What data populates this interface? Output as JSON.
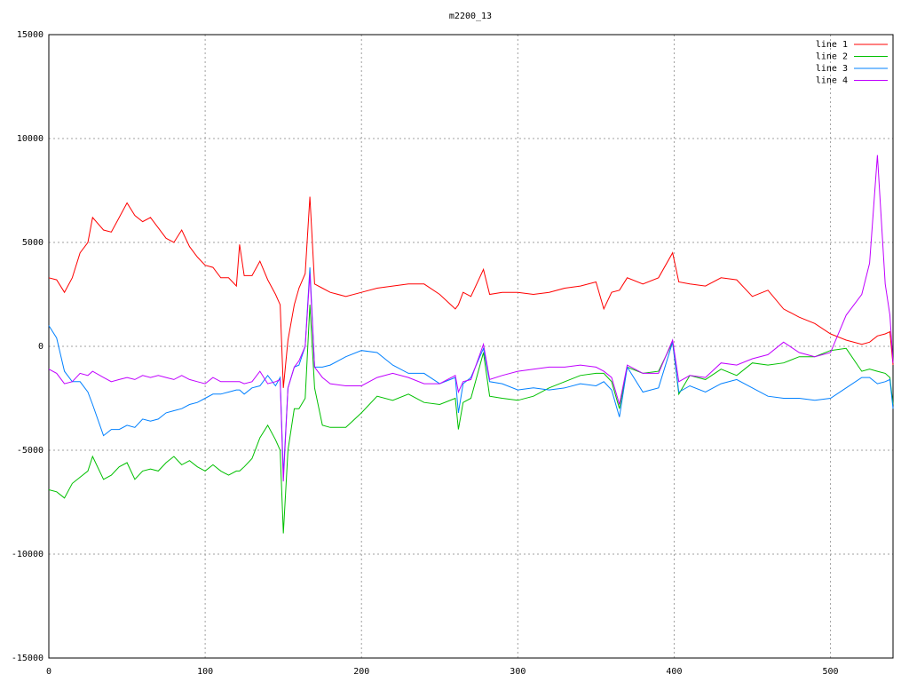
{
  "chart_data": {
    "type": "line",
    "title": "m2200_13",
    "x": [
      0,
      5,
      10,
      15,
      20,
      25,
      28,
      35,
      40,
      45,
      50,
      55,
      60,
      65,
      70,
      75,
      80,
      85,
      90,
      95,
      100,
      105,
      110,
      115,
      120,
      122,
      125,
      130,
      135,
      140,
      145,
      148,
      150,
      153,
      157,
      160,
      164,
      167,
      170,
      175,
      180,
      190,
      200,
      210,
      220,
      230,
      240,
      250,
      260,
      262,
      265,
      270,
      278,
      282,
      290,
      300,
      310,
      320,
      330,
      340,
      350,
      355,
      360,
      365,
      370,
      380,
      390,
      399,
      403,
      410,
      420,
      430,
      440,
      450,
      460,
      470,
      480,
      490,
      500,
      510,
      520,
      525,
      530,
      535,
      538,
      540
    ],
    "series": [
      {
        "name": "line 1",
        "color": "#ff0000",
        "values": [
          3300,
          3200,
          2600,
          3300,
          4500,
          5000,
          6200,
          5600,
          5500,
          6200,
          6900,
          6300,
          6000,
          6200,
          5700,
          5200,
          5000,
          5600,
          4800,
          4300,
          3900,
          3800,
          3300,
          3300,
          2900,
          4900,
          3400,
          3400,
          4100,
          3200,
          2500,
          2000,
          -2000,
          300,
          2000,
          2800,
          3500,
          7200,
          3000,
          2800,
          2600,
          2400,
          2600,
          2800,
          2900,
          3000,
          3000,
          2500,
          1800,
          2000,
          2600,
          2400,
          3700,
          2500,
          2600,
          2600,
          2500,
          2600,
          2800,
          2900,
          3100,
          1800,
          2600,
          2700,
          3300,
          3000,
          3300,
          4500,
          3100,
          3000,
          2900,
          3300,
          3200,
          2400,
          2700,
          1800,
          1400,
          1100,
          600,
          300,
          100,
          200,
          500,
          600,
          700,
          -900
        ]
      },
      {
        "name": "line 2",
        "color": "#00c000",
        "values": [
          -6900,
          -7000,
          -7300,
          -6600,
          -6300,
          -6000,
          -5300,
          -6400,
          -6200,
          -5800,
          -5600,
          -6400,
          -6000,
          -5900,
          -6000,
          -5600,
          -5300,
          -5700,
          -5500,
          -5800,
          -6000,
          -5700,
          -6000,
          -6200,
          -6000,
          -6000,
          -5800,
          -5400,
          -4400,
          -3800,
          -4500,
          -5000,
          -9000,
          -5000,
          -3000,
          -3000,
          -2500,
          2000,
          -2000,
          -3800,
          -3900,
          -3900,
          -3200,
          -2400,
          -2600,
          -2300,
          -2700,
          -2800,
          -2500,
          -4000,
          -2700,
          -2500,
          -300,
          -2400,
          -2500,
          -2600,
          -2400,
          -2000,
          -1700,
          -1400,
          -1300,
          -1300,
          -1700,
          -3000,
          -1000,
          -1300,
          -1200,
          200,
          -2300,
          -1400,
          -1600,
          -1100,
          -1400,
          -800,
          -900,
          -800,
          -500,
          -500,
          -200,
          -100,
          -1200,
          -1100,
          -1200,
          -1300,
          -1500,
          -2800
        ]
      },
      {
        "name": "line 3",
        "color": "#0080ff",
        "values": [
          1000,
          400,
          -1200,
          -1700,
          -1700,
          -2200,
          -2800,
          -4300,
          -4000,
          -4000,
          -3800,
          -3900,
          -3500,
          -3600,
          -3500,
          -3200,
          -3100,
          -3000,
          -2800,
          -2700,
          -2500,
          -2300,
          -2300,
          -2200,
          -2100,
          -2100,
          -2300,
          -2000,
          -1900,
          -1400,
          -1900,
          -1500,
          -6200,
          -2000,
          -1000,
          -900,
          0,
          3800,
          -1000,
          -1000,
          -900,
          -500,
          -200,
          -300,
          -900,
          -1300,
          -1300,
          -1800,
          -1500,
          -3200,
          -1800,
          -1500,
          -100,
          -1700,
          -1800,
          -2100,
          -2000,
          -2100,
          -2000,
          -1800,
          -1900,
          -1700,
          -2100,
          -3400,
          -1000,
          -2200,
          -2000,
          200,
          -2200,
          -1900,
          -2200,
          -1800,
          -1600,
          -2000,
          -2400,
          -2500,
          -2500,
          -2600,
          -2500,
          -2000,
          -1500,
          -1500,
          -1800,
          -1700,
          -1600,
          -3000
        ]
      },
      {
        "name": "line 4",
        "color": "#c000ff",
        "values": [
          -1100,
          -1300,
          -1800,
          -1700,
          -1300,
          -1400,
          -1200,
          -1500,
          -1700,
          -1600,
          -1500,
          -1600,
          -1400,
          -1500,
          -1400,
          -1500,
          -1600,
          -1400,
          -1600,
          -1700,
          -1800,
          -1500,
          -1700,
          -1700,
          -1700,
          -1700,
          -1800,
          -1700,
          -1200,
          -1800,
          -1700,
          -1600,
          -6500,
          -2000,
          -1000,
          -700,
          0,
          3500,
          -1000,
          -1500,
          -1800,
          -1900,
          -1900,
          -1500,
          -1300,
          -1500,
          -1800,
          -1800,
          -1400,
          -2200,
          -1700,
          -1600,
          100,
          -1600,
          -1400,
          -1200,
          -1100,
          -1000,
          -1000,
          -900,
          -1000,
          -1200,
          -1500,
          -2800,
          -900,
          -1300,
          -1300,
          300,
          -1700,
          -1400,
          -1500,
          -800,
          -900,
          -600,
          -400,
          200,
          -300,
          -500,
          -300,
          1500,
          2500,
          4000,
          9200,
          3000,
          1500,
          -800
        ]
      }
    ],
    "xlim": [
      0,
      540
    ],
    "xticks": [
      0,
      100,
      200,
      300,
      400,
      500
    ],
    "ylim": [
      -15000,
      15000
    ],
    "yticks": [
      -15000,
      -10000,
      -5000,
      0,
      5000,
      10000,
      15000
    ],
    "grid": true,
    "legend": "top-right"
  }
}
